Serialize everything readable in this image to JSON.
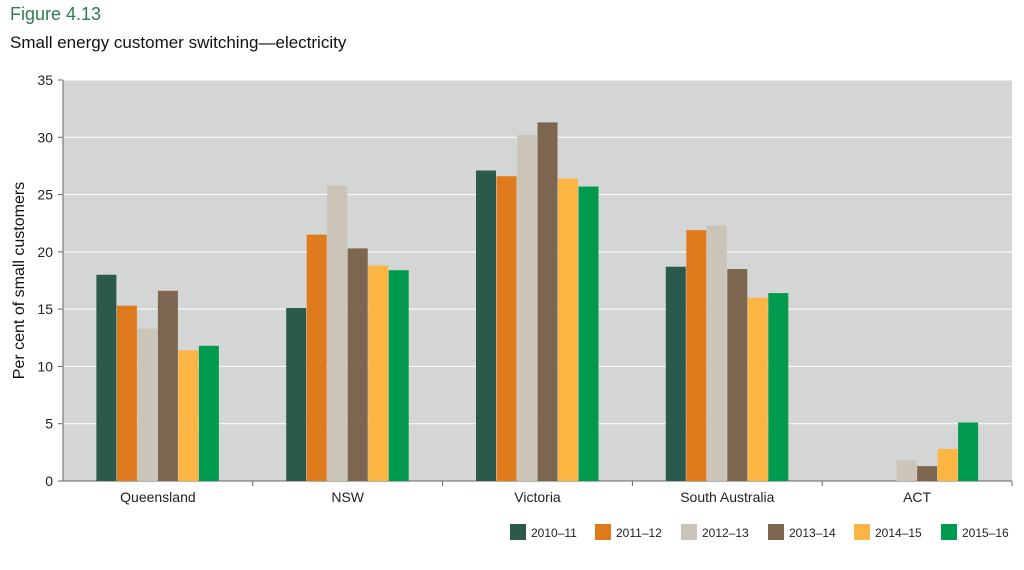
{
  "figure_label": "Figure 4.13",
  "title": "Small energy customer switching—electricity",
  "chart_data": {
    "type": "bar",
    "title": "Small energy customer switching—electricity",
    "xlabel": "",
    "ylabel": "Per cent of small customers",
    "ylim": [
      0,
      35
    ],
    "yticks": [
      0,
      5,
      10,
      15,
      20,
      25,
      30,
      35
    ],
    "grid": true,
    "background": "#d3d6d4",
    "legend_position": "bottom-right",
    "categories": [
      "Queensland",
      "NSW",
      "Victoria",
      "South Australia",
      "ACT"
    ],
    "series": [
      {
        "name": "2010–11",
        "color": "#2b5a4c",
        "values": [
          18.0,
          15.1,
          27.1,
          18.7,
          null
        ]
      },
      {
        "name": "2011–12",
        "color": "#e07b1d",
        "values": [
          15.3,
          21.5,
          26.6,
          21.9,
          null
        ]
      },
      {
        "name": "2012–13",
        "color": "#cbc4b8",
        "values": [
          13.3,
          25.8,
          30.2,
          22.3,
          1.8
        ]
      },
      {
        "name": "2013–14",
        "color": "#7d6650",
        "values": [
          16.6,
          20.3,
          31.3,
          18.5,
          1.3
        ]
      },
      {
        "name": "2014–15",
        "color": "#fbb543",
        "values": [
          11.4,
          18.8,
          26.4,
          16.0,
          2.8
        ]
      },
      {
        "name": "2015–16",
        "color": "#009a4e",
        "values": [
          11.8,
          18.4,
          25.7,
          16.4,
          5.1
        ]
      }
    ]
  }
}
